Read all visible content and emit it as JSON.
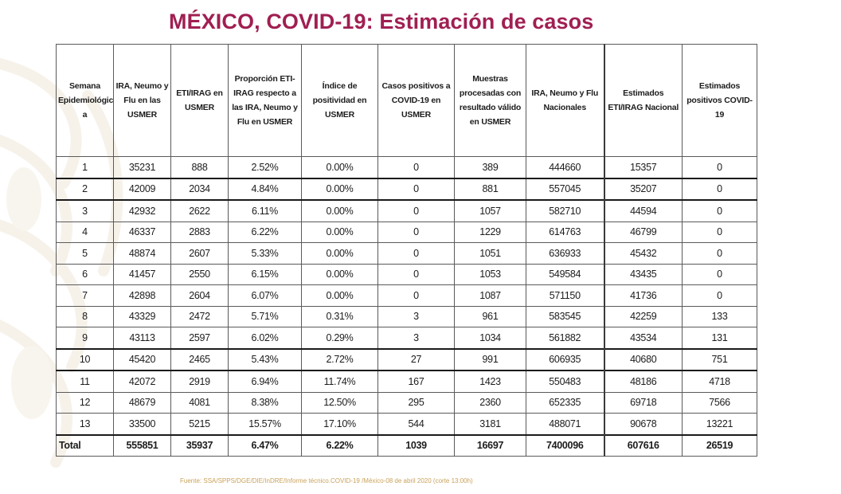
{
  "title": "MÉXICO, COVID-19: Estimación de casos",
  "table": {
    "headers": [
      "Semana Epidemiológic a",
      "IRA, Neumo y Flu en las USMER",
      "ETI/IRAG en USMER",
      "Proporción ETI-IRAG respecto a las IRA, Neumo y Flu en USMER",
      "Índice de positividad en USMER",
      "Casos positivos a COVID-19 en USMER",
      "Muestras procesadas con resultado válido en USMER",
      "IRA, Neumo y Flu Nacionales",
      "Estimados ETI/IRAG Nacional",
      "Estimados positivos COVID-19"
    ],
    "rows": [
      [
        "1",
        "35231",
        "888",
        "2.52%",
        "0.00%",
        "0",
        "389",
        "444660",
        "15357",
        "0"
      ],
      [
        "2",
        "42009",
        "2034",
        "4.84%",
        "0.00%",
        "0",
        "881",
        "557045",
        "35207",
        "0"
      ],
      [
        "3",
        "42932",
        "2622",
        "6.11%",
        "0.00%",
        "0",
        "1057",
        "582710",
        "44594",
        "0"
      ],
      [
        "4",
        "46337",
        "2883",
        "6.22%",
        "0.00%",
        "0",
        "1229",
        "614763",
        "46799",
        "0"
      ],
      [
        "5",
        "48874",
        "2607",
        "5.33%",
        "0.00%",
        "0",
        "1051",
        "636933",
        "45432",
        "0"
      ],
      [
        "6",
        "41457",
        "2550",
        "6.15%",
        "0.00%",
        "0",
        "1053",
        "549584",
        "43435",
        "0"
      ],
      [
        "7",
        "42898",
        "2604",
        "6.07%",
        "0.00%",
        "0",
        "1087",
        "571150",
        "41736",
        "0"
      ],
      [
        "8",
        "43329",
        "2472",
        "5.71%",
        "0.31%",
        "3",
        "961",
        "583545",
        "42259",
        "133"
      ],
      [
        "9",
        "43113",
        "2597",
        "6.02%",
        "0.29%",
        "3",
        "1034",
        "561882",
        "43534",
        "131"
      ],
      [
        "10",
        "45420",
        "2465",
        "5.43%",
        "2.72%",
        "27",
        "991",
        "606935",
        "40680",
        "751"
      ],
      [
        "11",
        "42072",
        "2919",
        "6.94%",
        "11.74%",
        "167",
        "1423",
        "550483",
        "48186",
        "4718"
      ],
      [
        "12",
        "48679",
        "4081",
        "8.38%",
        "12.50%",
        "295",
        "2360",
        "652335",
        "69718",
        "7566"
      ],
      [
        "13",
        "33500",
        "5215",
        "15.57%",
        "17.10%",
        "544",
        "3181",
        "488071",
        "90678",
        "13221"
      ]
    ],
    "total": [
      "Total",
      "555851",
      "35937",
      "6.47%",
      "6.22%",
      "1039",
      "16697",
      "7400096",
      "607616",
      "26519"
    ]
  },
  "source": "Fuente: SSA/SPPS/DGE/DIE/InDRE/Informe técnico.COVID-19 /México-08 de abril 2020 (corte 13:00h)",
  "colors": {
    "title": "#a01f52",
    "source": "#c9a25a",
    "watermark": "#efe6d6"
  },
  "icons": [
    "eagle-watermark-icon"
  ]
}
